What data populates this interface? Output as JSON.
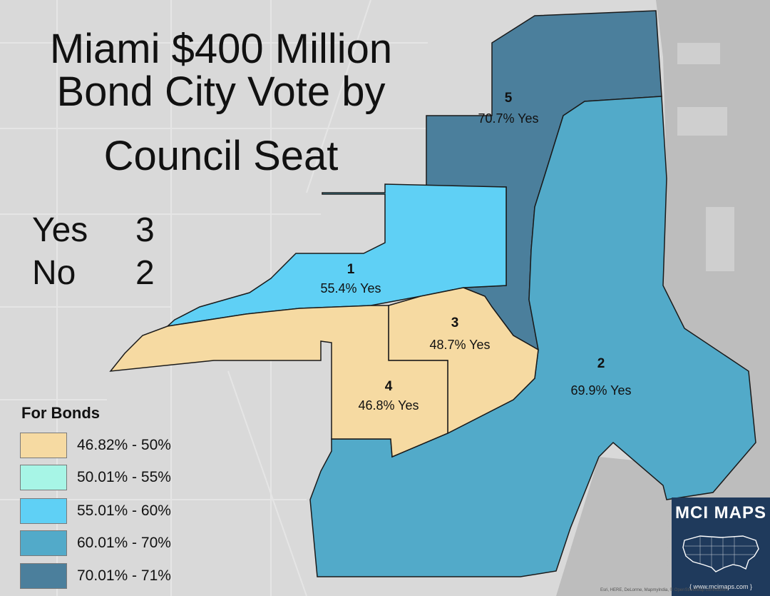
{
  "title": {
    "line1": "Miami $400 Million",
    "line2": "Bond City Vote by",
    "line3": "Council Seat"
  },
  "tally": {
    "yes_label": "Yes",
    "yes_count": "3",
    "no_label": "No",
    "no_count": "2"
  },
  "districts": [
    {
      "number": "1",
      "result": "55.4% Yes",
      "yes_pct": 55.4,
      "color": "#5fd0f5"
    },
    {
      "number": "2",
      "result": "69.9% Yes",
      "yes_pct": 69.9,
      "color": "#52aac9"
    },
    {
      "number": "3",
      "result": "48.7% Yes",
      "yes_pct": 48.7,
      "color": "#f6daa2"
    },
    {
      "number": "4",
      "result": "46.8% Yes",
      "yes_pct": 46.8,
      "color": "#f6daa2"
    },
    {
      "number": "5",
      "result": "70.7% Yes",
      "yes_pct": 70.7,
      "color": "#4b7f9c"
    }
  ],
  "legend": {
    "title": "For Bonds",
    "items": [
      {
        "label": "46.82% - 50%",
        "color": "#f6daa2"
      },
      {
        "label": "50.01% - 55%",
        "color": "#a7f5e6"
      },
      {
        "label": "55.01% - 60%",
        "color": "#5fd0f5"
      },
      {
        "label": "60.01% - 70%",
        "color": "#52aac9"
      },
      {
        "label": "70.01% - 71%",
        "color": "#4b7f9c"
      }
    ]
  },
  "logo": {
    "name": "MCI MAPS",
    "url": "{ www.mcimaps.com }",
    "background": "#1f3a5c"
  },
  "attribution": "Esri, HERE, DeLorme, MapmyIndia, © OpenStreetMap contributors",
  "colors": {
    "land": "#d9d9d9",
    "water": "#b9b9b9",
    "district_border": "#1a1a1a"
  }
}
